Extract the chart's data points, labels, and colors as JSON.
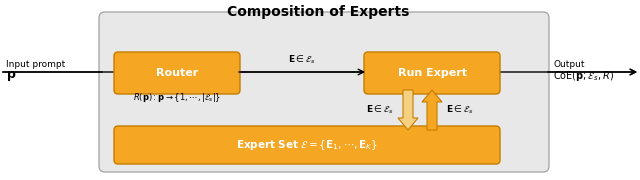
{
  "title": "Composition of Experts",
  "title_fontsize": 10,
  "box_color": "#f5a623",
  "box_edge_color": "#c47d00",
  "outer_facecolor": "#e8e8e8",
  "outer_edgecolor": "#aaaaaa",
  "router_label": "Router",
  "run_expert_label": "Run Expert",
  "expert_set_label": "$\\mathbf{Expert\\ Set}\\ \\mathcal{E} = \\{\\mathbf{E}_1, \\cdots, \\mathbf{E}_K\\}$",
  "input_label1": "Input prompt",
  "input_label2": "$\\mathbf{p}$",
  "output_label1": "Output",
  "output_label2": "$\\mathrm{CoE}(\\mathbf{p};\\mathcal{E}_s, R)$",
  "router_sub": "$R(\\mathbf{p}): \\mathbf{p} \\to \\{1, \\cdots, |\\mathcal{E}_s|\\}$",
  "arrow_label_top": "$\\mathbf{E} \\in \\mathcal{E}_s$",
  "arrow_label_down": "$\\mathbf{E} \\in \\mathcal{E}_s$",
  "arrow_label_up": "$\\mathbf{E} \\in \\mathcal{E}_s$",
  "fat_arrow_down_color": "#f5d080",
  "fat_arrow_up_color": "#f5a623",
  "fat_arrow_edge": "#c47d00"
}
